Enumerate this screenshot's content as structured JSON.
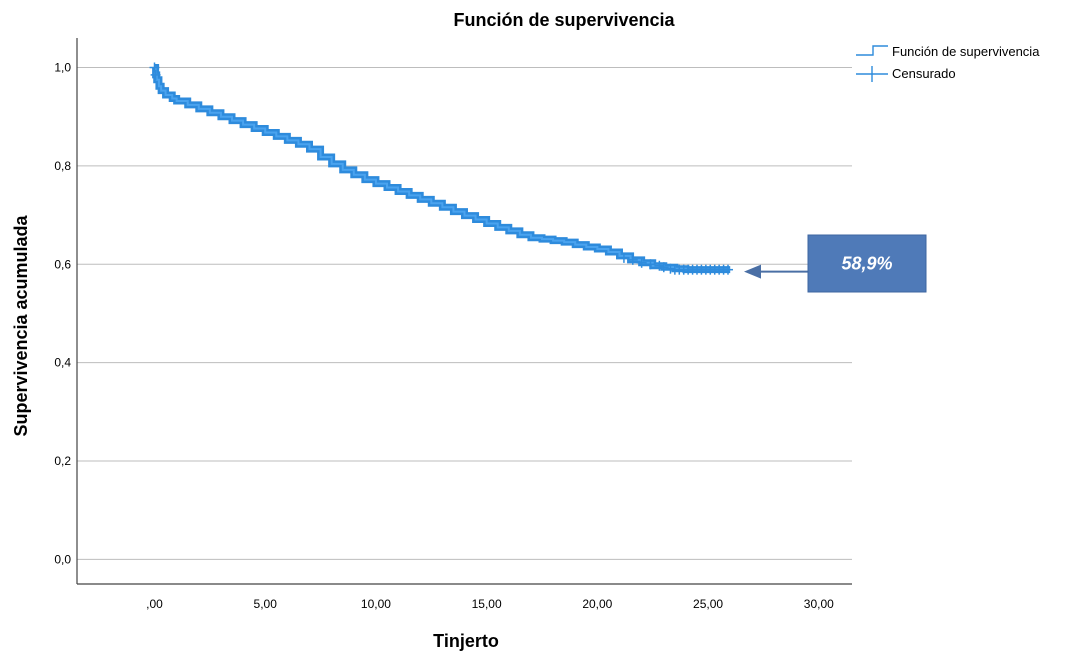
{
  "chart_data": {
    "type": "line",
    "title": "Función de supervivencia",
    "xlabel": "Tinjerto",
    "ylabel": "Supervivencia acumulada",
    "xlim": [
      -3.5,
      31.5
    ],
    "ylim": [
      -0.05,
      1.06
    ],
    "xticks": [
      0,
      5,
      10,
      15,
      20,
      25,
      30
    ],
    "xtick_labels": [
      ",00",
      "5,00",
      "10,00",
      "15,00",
      "20,00",
      "25,00",
      "30,00"
    ],
    "yticks": [
      0,
      0.2,
      0.4,
      0.6,
      0.8,
      1.0
    ],
    "ytick_labels": [
      "0,0",
      "0,2",
      "0,4",
      "0,6",
      "0,8",
      "1,0"
    ],
    "grid": "horizontal",
    "legend_position": "top-right",
    "legend": [
      {
        "label": "Función de supervivencia",
        "symbol": "step"
      },
      {
        "label": "Censurado",
        "symbol": "plus"
      }
    ],
    "series": [
      {
        "name": "Función de supervivencia",
        "color": "#2e8bdc",
        "x": [
          0,
          0.05,
          0.1,
          0.2,
          0.3,
          0.5,
          0.8,
          1,
          1.5,
          2,
          2.5,
          3,
          3.5,
          4,
          4.5,
          5,
          5.5,
          6,
          6.5,
          7,
          7.5,
          8,
          8.5,
          9,
          9.5,
          10,
          10.5,
          11,
          11.5,
          12,
          12.5,
          13,
          13.5,
          14,
          14.5,
          15,
          15.5,
          16,
          16.5,
          17,
          17.5,
          18,
          18.5,
          19,
          19.5,
          20,
          20.5,
          21,
          21.5,
          22,
          22.5,
          23,
          23.5,
          24,
          24.5,
          25,
          25.5,
          26
        ],
        "y": [
          1.0,
          0.985,
          0.975,
          0.962,
          0.953,
          0.944,
          0.937,
          0.932,
          0.924,
          0.916,
          0.908,
          0.9,
          0.892,
          0.884,
          0.876,
          0.868,
          0.86,
          0.852,
          0.844,
          0.834,
          0.818,
          0.804,
          0.792,
          0.782,
          0.772,
          0.764,
          0.756,
          0.748,
          0.74,
          0.732,
          0.724,
          0.716,
          0.707,
          0.699,
          0.691,
          0.683,
          0.675,
          0.668,
          0.66,
          0.654,
          0.651,
          0.648,
          0.645,
          0.64,
          0.635,
          0.631,
          0.625,
          0.617,
          0.609,
          0.603,
          0.597,
          0.594,
          0.591,
          0.589,
          0.589,
          0.589,
          0.589,
          0.589
        ]
      }
    ],
    "censored": {
      "name": "Censurado",
      "x": [
        0,
        0.05,
        21.2,
        21.6,
        22.0,
        22.4,
        22.8,
        23.0,
        23.3,
        23.5,
        23.7,
        23.9,
        24.1,
        24.3,
        24.5,
        24.7,
        24.9,
        25.1,
        25.3,
        25.5,
        25.7,
        25.9
      ],
      "y": [
        1.0,
        0.985,
        0.613,
        0.609,
        0.603,
        0.6,
        0.597,
        0.594,
        0.591,
        0.589,
        0.589,
        0.589,
        0.589,
        0.589,
        0.589,
        0.589,
        0.589,
        0.589,
        0.589,
        0.589,
        0.589,
        0.589
      ]
    },
    "annotation": {
      "text": "58,9%",
      "value": 0.589,
      "box_color": "#4f7ab8"
    }
  }
}
